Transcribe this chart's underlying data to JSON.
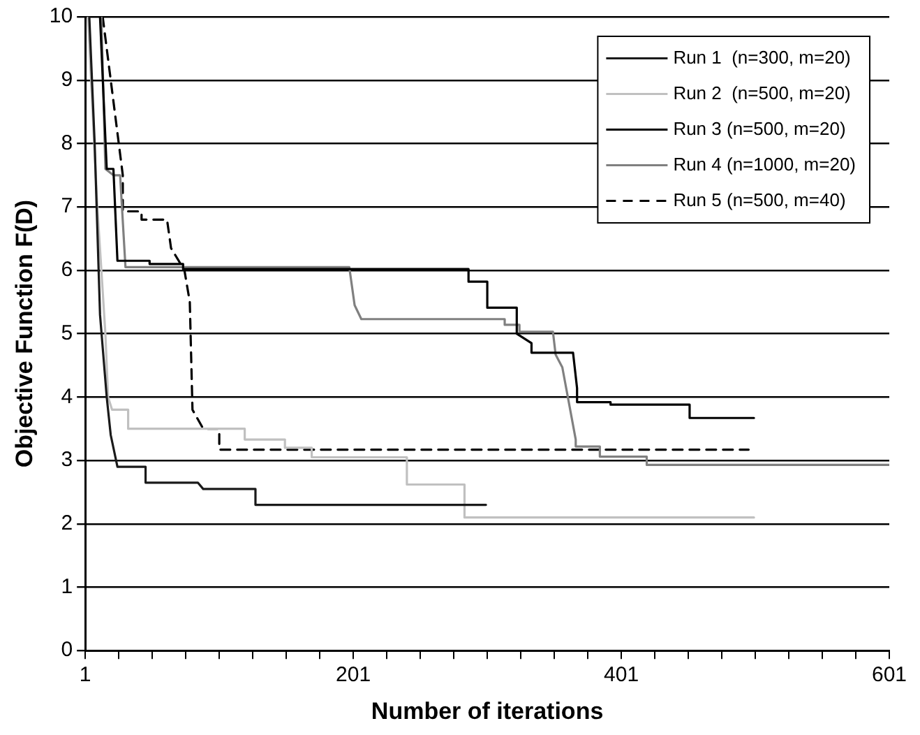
{
  "chart_data": {
    "type": "line",
    "xlabel": "Number of iterations",
    "ylabel": "Objective Function F(D)",
    "xlim": [
      1,
      601
    ],
    "ylim": [
      0,
      10
    ],
    "xticks": [
      1,
      {
        "value": 26,
        "label": null
      },
      {
        "value": 51,
        "label": null
      },
      {
        "value": 76,
        "label": null
      },
      {
        "value": 101,
        "label": null
      },
      {
        "value": 126,
        "label": null
      },
      {
        "value": 151,
        "label": null
      },
      {
        "value": 176,
        "label": null
      },
      201,
      {
        "value": 226,
        "label": null
      },
      {
        "value": 251,
        "label": null
      },
      {
        "value": 276,
        "label": null
      },
      {
        "value": 301,
        "label": null
      },
      {
        "value": 326,
        "label": null
      },
      {
        "value": 351,
        "label": null
      },
      {
        "value": 376,
        "label": null
      },
      401,
      {
        "value": 426,
        "label": null
      },
      {
        "value": 451,
        "label": null
      },
      {
        "value": 476,
        "label": null
      },
      {
        "value": 501,
        "label": null
      },
      {
        "value": 526,
        "label": null
      },
      {
        "value": 551,
        "label": null
      },
      {
        "value": 576,
        "label": null
      },
      601
    ],
    "yticks": [
      0,
      1,
      2,
      3,
      4,
      5,
      6,
      7,
      8,
      9,
      10
    ],
    "grid": "y",
    "legend": "top right",
    "marker": "none",
    "series": [
      {
        "name": "Run 1  (n=300, m=20)",
        "color": "#1a1a1a",
        "line_style": "solid",
        "x": [
          4,
          8,
          12,
          17,
          20,
          25,
          46,
          46,
          85,
          89,
          128,
          128,
          300
        ],
        "values": [
          10,
          8,
          5.3,
          4,
          3.4,
          2.9,
          2.9,
          2.65,
          2.65,
          2.55,
          2.55,
          2.3,
          2.3
        ]
      },
      {
        "name": "Run 2  (n=500, m=20)",
        "color": "#c0c0c0",
        "line_style": "solid",
        "x": [
          3,
          10,
          16,
          18,
          21,
          33,
          33,
          120,
          120,
          150,
          150,
          170,
          170,
          241,
          241,
          284,
          284,
          500
        ],
        "values": [
          10,
          7,
          5,
          4,
          3.8,
          3.8,
          3.5,
          3.5,
          3.33,
          3.33,
          3.2,
          3.2,
          3.05,
          3.05,
          2.62,
          2.62,
          2.1,
          2.1
        ]
      },
      {
        "name": "Run 3 (n=500, m=20)",
        "color": "#000000",
        "line_style": "solid",
        "x": [
          12,
          17,
          22,
          25,
          49,
          49,
          74,
          74,
          287,
          287,
          301,
          301,
          323,
          323,
          334,
          334,
          365,
          368,
          368,
          393,
          393,
          452,
          452,
          500
        ],
        "values": [
          10,
          7.6,
          7.6,
          6.15,
          6.15,
          6.1,
          6.1,
          6.02,
          6.02,
          5.82,
          5.82,
          5.41,
          5.41,
          5,
          4.85,
          4.7,
          4.7,
          4.14,
          3.92,
          3.92,
          3.88,
          3.88,
          3.67,
          3.67
        ]
      },
      {
        "name": "Run 4 (n=1000, m=20)",
        "color": "#808080",
        "line_style": "solid",
        "x": [
          13,
          16,
          22,
          27,
          31,
          198,
          202,
          207,
          314,
          314,
          325,
          325,
          350,
          352,
          357,
          367,
          367,
          385,
          385,
          420,
          420,
          601
        ],
        "values": [
          10,
          7.6,
          7.5,
          7.5,
          6.05,
          6.05,
          5.45,
          5.23,
          5.23,
          5.14,
          5.14,
          5.03,
          5.03,
          4.67,
          4.47,
          3.33,
          3.22,
          3.22,
          3.06,
          3.06,
          2.93,
          2.93
        ]
      },
      {
        "name": "Run 5 (n=500, m=40)",
        "color": "#000000",
        "line_style": "dashed",
        "x": [
          14,
          29,
          29,
          43,
          43,
          62,
          65,
          75,
          79,
          81,
          89,
          101,
          101,
          496
        ],
        "values": [
          10,
          7.5,
          6.93,
          6.93,
          6.8,
          6.8,
          6.35,
          6,
          5.5,
          3.8,
          3.5,
          3.5,
          3.17,
          3.17
        ]
      }
    ]
  }
}
